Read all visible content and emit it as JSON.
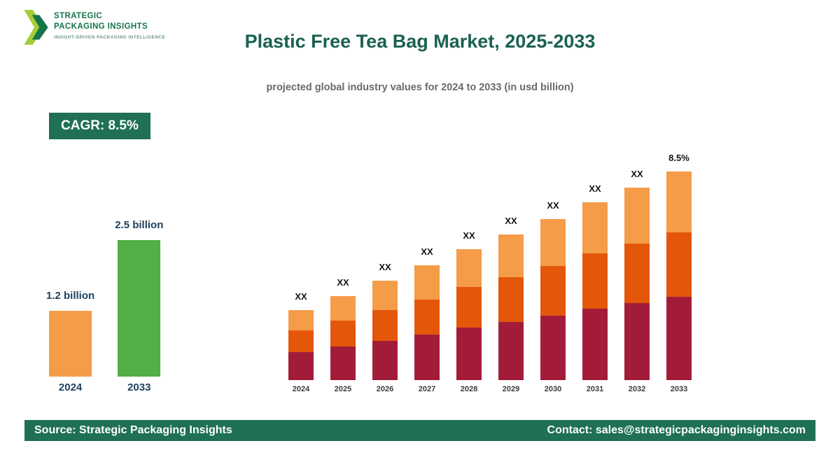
{
  "logo": {
    "line1": "STRATEGIC",
    "line2": "PACKAGING INSIGHTS",
    "tagline": "INSIGHT-DRIVEN PACKAGING INTELLIGENCE",
    "mark_colors": {
      "back": "#a6ce39",
      "front": "#15754a"
    }
  },
  "header": {
    "title": "Plastic Free Tea Bag Market, 2025-2033",
    "subtitle": "projected global industry values for 2024 to 2033 (in usd billion)"
  },
  "badge": {
    "label": "CAGR: 8.5%",
    "background": "#1f7054",
    "text_color": "#ffffff"
  },
  "footer": {
    "source": "Source: Strategic Packaging Insights",
    "contact": "Contact: sales@strategicpackaginginsights.com",
    "background": "#1f7054"
  },
  "colors": {
    "title": "#1a6152",
    "accent_green": "#1f7054",
    "bar_orange": "#f59c49",
    "bar_green": "#52ae46",
    "segment_crimson": "#a21c3a",
    "segment_orange_red": "#e4570b",
    "segment_light_orange": "#f59c49"
  },
  "chart_data": [
    {
      "type": "bar",
      "name": "growth-summary",
      "categories": [
        "2024",
        "2033"
      ],
      "values": [
        1.2,
        2.5
      ],
      "value_labels": [
        "1.2 billion",
        "2.5 billion"
      ],
      "bar_colors": [
        "#f59c49",
        "#52ae46"
      ],
      "unit": "usd billion",
      "ylim": [
        0,
        2.5
      ],
      "grid": false,
      "legend": "none"
    },
    {
      "type": "bar",
      "subtype": "stacked",
      "name": "projection-by-year",
      "categories": [
        "2024",
        "2025",
        "2026",
        "2027",
        "2028",
        "2029",
        "2030",
        "2031",
        "2032",
        "2033"
      ],
      "series": [
        {
          "name": "bottom-segment",
          "color": "#a21c3a",
          "values": [
            0.4,
            0.48,
            0.57,
            0.66,
            0.76,
            0.84,
            0.93,
            1.03,
            1.11,
            1.2
          ]
        },
        {
          "name": "middle-segment",
          "color": "#e4570b",
          "values": [
            0.31,
            0.37,
            0.44,
            0.51,
            0.59,
            0.65,
            0.72,
            0.8,
            0.86,
            0.93
          ]
        },
        {
          "name": "top-segment",
          "color": "#f59c49",
          "values": [
            0.29,
            0.35,
            0.42,
            0.49,
            0.55,
            0.62,
            0.68,
            0.74,
            0.81,
            0.88
          ]
        }
      ],
      "bar_labels": [
        "XX",
        "XX",
        "XX",
        "XX",
        "XX",
        "XX",
        "XX",
        "XX",
        "XX",
        "8.5%"
      ],
      "units": "relative (2024 total = 1.00; numeric values masked as XX in source image)",
      "grid": false,
      "legend": "none"
    }
  ]
}
